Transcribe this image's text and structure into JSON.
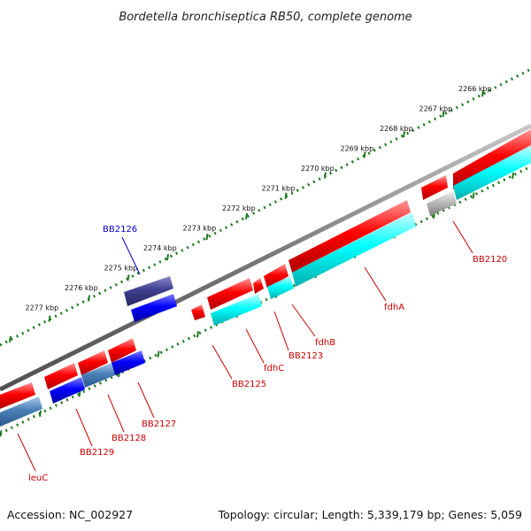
{
  "title": "Bordetella bronchiseptica RB50, complete genome",
  "footer": {
    "accession": "Accession: NC_002927",
    "summary": "Topology: circular; Length: 5,339,179 bp; Genes: 5,059"
  },
  "colors": {
    "forward": "#ff0000",
    "reverse_cds": "#00ffff",
    "gene_blue": "#0000ff",
    "gene_darkblue": "#404090",
    "gene_steel": "#4a80b8",
    "gene_grey": "#b4b4b4",
    "backbone": "#787878",
    "ruler": "#1f7a1f",
    "label": "#cc0000",
    "label_blue": "#0000cc"
  },
  "ruler": {
    "unit": "kbp",
    "labels": [
      "2266 kbp",
      "2267 kbp",
      "2268 kbp",
      "2269 kbp",
      "2270 kbp",
      "2271 kbp",
      "2272 kbp",
      "2273 kbp",
      "2274 kbp",
      "2275 kbp",
      "2276 kbp",
      "2277 kbp"
    ]
  },
  "genes": [
    {
      "label": "BB2120",
      "color": "#cc0000"
    },
    {
      "label": "fdhA",
      "color": "#cc0000"
    },
    {
      "label": "fdhB",
      "color": "#cc0000"
    },
    {
      "label": "BB2123",
      "color": "#cc0000"
    },
    {
      "label": "fdhC",
      "color": "#cc0000"
    },
    {
      "label": "BB2125",
      "color": "#cc0000"
    },
    {
      "label": "BB2126",
      "color": "#0000cc"
    },
    {
      "label": "BB2127",
      "color": "#cc0000"
    },
    {
      "label": "BB2128",
      "color": "#cc0000"
    },
    {
      "label": "BB2129",
      "color": "#cc0000"
    },
    {
      "label": "leuC",
      "color": "#cc0000"
    }
  ]
}
